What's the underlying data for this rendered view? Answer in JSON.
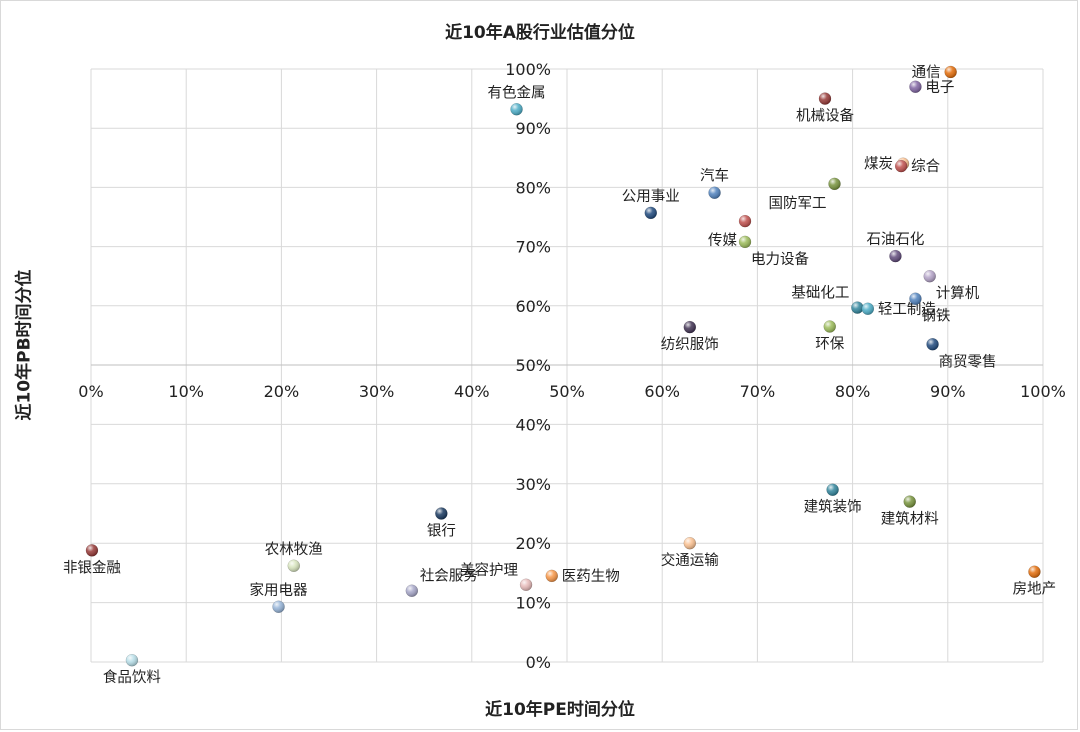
{
  "chart_data": {
    "type": "scatter",
    "title": "近10年A股行业估值分位",
    "xlabel": "近10年PE时间分位",
    "ylabel": "近10年PB时间分位",
    "xlim": [
      0,
      1
    ],
    "ylim": [
      0,
      1
    ],
    "x_ticks": [
      "0%",
      "10%",
      "20%",
      "30%",
      "40%",
      "50%",
      "60%",
      "70%",
      "80%",
      "90%",
      "100%"
    ],
    "y_ticks": [
      "0%",
      "10%",
      "20%",
      "30%",
      "40%",
      "50%",
      "60%",
      "70%",
      "80%",
      "90%",
      "100%"
    ],
    "grid": true,
    "points": [
      {
        "name": "通信",
        "x": 0.903,
        "y": 0.995,
        "color": "#E36C09",
        "label_pos": "left"
      },
      {
        "name": "电子",
        "x": 0.866,
        "y": 0.97,
        "color": "#8064A2",
        "label_pos": "right"
      },
      {
        "name": "有色金属",
        "x": 0.447,
        "y": 0.932,
        "color": "#4BACC6",
        "label_pos": "top"
      },
      {
        "name": "机械设备",
        "x": 0.771,
        "y": 0.95,
        "color": "#953735",
        "label_pos": "bottom"
      },
      {
        "name": "煤炭",
        "x": 0.853,
        "y": 0.84,
        "color": "#FAC090",
        "label_pos": "left"
      },
      {
        "name": "综合",
        "x": 0.851,
        "y": 0.836,
        "color": "#C0504D",
        "label_pos": "right"
      },
      {
        "name": "国防军工",
        "x": 0.781,
        "y": 0.806,
        "color": "#77933C",
        "label_pos": "bottom-left"
      },
      {
        "name": "汽车",
        "x": 0.655,
        "y": 0.791,
        "color": "#4F81BD",
        "label_pos": "top"
      },
      {
        "name": "公用事业",
        "x": 0.588,
        "y": 0.757,
        "color": "#1F497D",
        "label_pos": "top"
      },
      {
        "name": "传媒",
        "x": 0.687,
        "y": 0.743,
        "color": "#C0504D",
        "label_pos": "bottom-left"
      },
      {
        "name": "电力设备",
        "x": 0.687,
        "y": 0.708,
        "color": "#9BBB59",
        "label_pos": "bottom-right"
      },
      {
        "name": "石油石化",
        "x": 0.845,
        "y": 0.684,
        "color": "#604A7B",
        "label_pos": "top"
      },
      {
        "name": "计算机",
        "x": 0.881,
        "y": 0.65,
        "color": "#B3A2C7",
        "label_pos": "bottom-right"
      },
      {
        "name": "基础化工",
        "x": 0.805,
        "y": 0.597,
        "color": "#31859C",
        "label_pos": "top-left"
      },
      {
        "name": "轻工制造",
        "x": 0.816,
        "y": 0.595,
        "color": "#4BACC6",
        "label_pos": "right"
      },
      {
        "name": "钢铁",
        "x": 0.866,
        "y": 0.612,
        "color": "#4F81BD",
        "label_pos": "bottom-right"
      },
      {
        "name": "纺织服饰",
        "x": 0.629,
        "y": 0.564,
        "color": "#403152",
        "label_pos": "bottom"
      },
      {
        "name": "环保",
        "x": 0.776,
        "y": 0.565,
        "color": "#9BBB59",
        "label_pos": "bottom"
      },
      {
        "name": "商贸零售",
        "x": 0.884,
        "y": 0.535,
        "color": "#1F497D",
        "label_pos": "bottom-right"
      },
      {
        "name": "建筑装饰",
        "x": 0.779,
        "y": 0.29,
        "color": "#31859C",
        "label_pos": "bottom"
      },
      {
        "name": "建筑材料",
        "x": 0.86,
        "y": 0.27,
        "color": "#77933C",
        "label_pos": "bottom"
      },
      {
        "name": "银行",
        "x": 0.368,
        "y": 0.25,
        "color": "#17375E",
        "label_pos": "bottom"
      },
      {
        "name": "交通运输",
        "x": 0.629,
        "y": 0.2,
        "color": "#FAC090",
        "label_pos": "bottom"
      },
      {
        "name": "非银金融",
        "x": 0.001,
        "y": 0.188,
        "color": "#953735",
        "label_pos": "bottom"
      },
      {
        "name": "农林牧渔",
        "x": 0.213,
        "y": 0.162,
        "color": "#D7E4BD",
        "label_pos": "top"
      },
      {
        "name": "房地产",
        "x": 0.991,
        "y": 0.152,
        "color": "#E36C09",
        "label_pos": "bottom"
      },
      {
        "name": "医药生物",
        "x": 0.484,
        "y": 0.145,
        "color": "#F79646",
        "label_pos": "right"
      },
      {
        "name": "美容护理",
        "x": 0.457,
        "y": 0.13,
        "color": "#E6B9B8",
        "label_pos": "top-left"
      },
      {
        "name": "社会服务",
        "x": 0.337,
        "y": 0.12,
        "color": "#A6A6C8",
        "label_pos": "top-right"
      },
      {
        "name": "家用电器",
        "x": 0.197,
        "y": 0.093,
        "color": "#95B3D7",
        "label_pos": "top"
      },
      {
        "name": "食品饮料",
        "x": 0.043,
        "y": 0.003,
        "color": "#B7DEE8",
        "label_pos": "bottom"
      }
    ]
  }
}
